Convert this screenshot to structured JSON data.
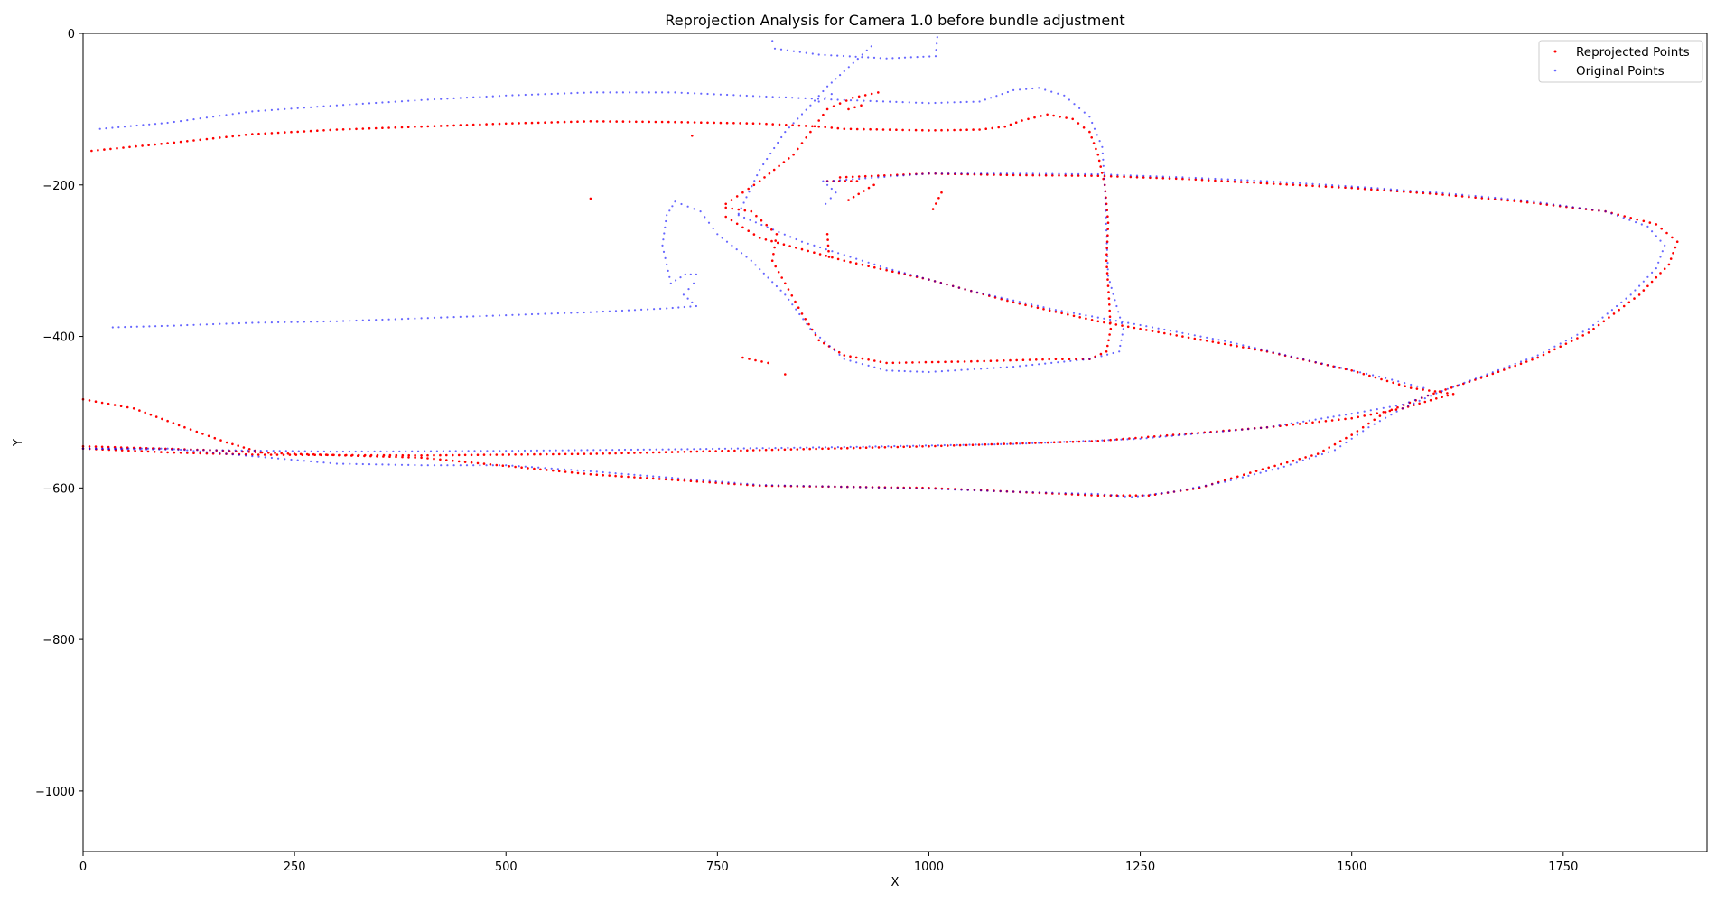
{
  "chart_data": {
    "type": "scatter",
    "title": "Reprojection Analysis for Camera 1.0 before bundle adjustment",
    "xlabel": "X",
    "ylabel": "Y",
    "xlim": [
      0,
      1920
    ],
    "ylim": [
      -1080,
      0
    ],
    "xticks": [
      0,
      250,
      500,
      750,
      1000,
      1250,
      1500,
      1750
    ],
    "yticks": [
      0,
      -200,
      -400,
      -600,
      -800,
      -1000
    ],
    "grid": false,
    "legend_position": "top-right",
    "series": [
      {
        "name": "Reprojected Points",
        "color": "#ff0000",
        "polylines": [
          [
            [
              10,
              -155
            ],
            [
              100,
              -145
            ],
            [
              200,
              -133
            ],
            [
              300,
              -127
            ],
            [
              400,
              -123
            ],
            [
              500,
              -119
            ],
            [
              600,
              -116
            ],
            [
              700,
              -117
            ],
            [
              800,
              -119
            ],
            [
              870,
              -123
            ],
            [
              900,
              -126
            ],
            [
              1000,
              -128
            ],
            [
              1060,
              -127
            ],
            [
              1090,
              -123
            ],
            [
              1110,
              -115
            ],
            [
              1140,
              -107
            ],
            [
              1170,
              -113
            ],
            [
              1190,
              -130
            ],
            [
              1200,
              -160
            ],
            [
              1208,
              -200
            ],
            [
              1212,
              -250
            ],
            [
              1210,
              -300
            ],
            [
              1213,
              -350
            ],
            [
              1215,
              -390
            ],
            [
              1210,
              -420
            ],
            [
              1190,
              -430
            ],
            [
              1150,
              -430
            ],
            [
              1050,
              -433
            ],
            [
              950,
              -435
            ],
            [
              900,
              -425
            ],
            [
              870,
              -405
            ],
            [
              850,
              -370
            ],
            [
              830,
              -330
            ],
            [
              815,
              -300
            ],
            [
              820,
              -265
            ],
            [
              790,
              -235
            ],
            [
              760,
              -230
            ]
          ],
          [
            [
              760,
              -225
            ],
            [
              800,
              -195
            ],
            [
              840,
              -160
            ],
            [
              860,
              -130
            ],
            [
              880,
              -100
            ],
            [
              910,
              -85
            ],
            [
              940,
              -78
            ]
          ],
          [
            [
              895,
              -190
            ],
            [
              1000,
              -185
            ],
            [
              1100,
              -187
            ],
            [
              1200,
              -188
            ],
            [
              1300,
              -192
            ],
            [
              1400,
              -198
            ],
            [
              1500,
              -204
            ],
            [
              1600,
              -212
            ],
            [
              1700,
              -222
            ],
            [
              1800,
              -235
            ],
            [
              1860,
              -252
            ],
            [
              1885,
              -275
            ],
            [
              1875,
              -305
            ],
            [
              1840,
              -345
            ],
            [
              1780,
              -395
            ],
            [
              1720,
              -428
            ],
            [
              1660,
              -452
            ],
            [
              1590,
              -478
            ],
            [
              1540,
              -500
            ],
            [
              1500,
              -530
            ],
            [
              1460,
              -555
            ],
            [
              1380,
              -580
            ],
            [
              1320,
              -600
            ],
            [
              1260,
              -610
            ],
            [
              1200,
              -610
            ],
            [
              1100,
              -605
            ],
            [
              1000,
              -600
            ],
            [
              800,
              -597
            ],
            [
              600,
              -582
            ],
            [
              400,
              -560
            ],
            [
              250,
              -555
            ],
            [
              150,
              -550
            ],
            [
              0,
              -545
            ]
          ],
          [
            [
              0,
              -483
            ],
            [
              60,
              -495
            ],
            [
              120,
              -520
            ],
            [
              170,
              -540
            ],
            [
              210,
              -553
            ]
          ],
          [
            [
              0,
              -548
            ],
            [
              100,
              -553
            ],
            [
              200,
              -556
            ],
            [
              400,
              -557
            ],
            [
              600,
              -555
            ],
            [
              800,
              -550
            ],
            [
              1000,
              -545
            ],
            [
              1200,
              -538
            ],
            [
              1400,
              -520
            ],
            [
              1500,
              -508
            ],
            [
              1560,
              -495
            ],
            [
              1600,
              -482
            ],
            [
              1620,
              -476
            ],
            [
              1570,
              -468
            ],
            [
              1500,
              -445
            ],
            [
              1400,
              -420
            ],
            [
              1300,
              -400
            ],
            [
              1200,
              -380
            ],
            [
              1100,
              -355
            ],
            [
              1000,
              -325
            ],
            [
              900,
              -300
            ],
            [
              800,
              -270
            ],
            [
              760,
              -242
            ]
          ],
          [
            [
              880,
              -195
            ],
            [
              915,
              -195
            ]
          ],
          [
            [
              905,
              -220
            ],
            [
              935,
              -200
            ]
          ],
          [
            [
              1005,
              -232
            ],
            [
              1015,
              -210
            ]
          ],
          [
            [
              880,
              -265
            ],
            [
              882,
              -295
            ]
          ],
          [
            [
              780,
              -428
            ],
            [
              810,
              -435
            ]
          ],
          [
            [
              905,
              -100
            ],
            [
              920,
              -95
            ]
          ]
        ],
        "points": [
          [
            830,
            -450
          ],
          [
            600,
            -218
          ],
          [
            720,
            -135
          ]
        ]
      },
      {
        "name": "Original Points",
        "color": "#0000ff",
        "polylines": [
          [
            [
              20,
              -126
            ],
            [
              100,
              -118
            ],
            [
              200,
              -103
            ],
            [
              300,
              -95
            ],
            [
              400,
              -88
            ],
            [
              500,
              -82
            ],
            [
              600,
              -78
            ],
            [
              700,
              -78
            ],
            [
              800,
              -83
            ],
            [
              900,
              -88
            ],
            [
              1000,
              -92
            ],
            [
              1060,
              -90
            ],
            [
              1100,
              -75
            ],
            [
              1130,
              -72
            ],
            [
              1160,
              -82
            ],
            [
              1190,
              -110
            ],
            [
              1205,
              -150
            ],
            [
              1208,
              -200
            ],
            [
              1210,
              -260
            ],
            [
              1212,
              -320
            ],
            [
              1222,
              -360
            ],
            [
              1230,
              -390
            ],
            [
              1225,
              -420
            ],
            [
              1190,
              -430
            ],
            [
              1100,
              -440
            ],
            [
              1000,
              -447
            ],
            [
              950,
              -445
            ],
            [
              900,
              -430
            ],
            [
              860,
              -390
            ],
            [
              830,
              -345
            ],
            [
              790,
              -300
            ],
            [
              750,
              -265
            ],
            [
              730,
              -235
            ],
            [
              700,
              -222
            ],
            [
              690,
              -240
            ],
            [
              685,
              -280
            ],
            [
              695,
              -330
            ],
            [
              712,
              -318
            ],
            [
              725,
              -318
            ],
            [
              722,
              -330
            ],
            [
              710,
              -345
            ],
            [
              725,
              -360
            ],
            [
              690,
              -363
            ],
            [
              600,
              -368
            ],
            [
              500,
              -372
            ],
            [
              400,
              -376
            ],
            [
              300,
              -380
            ],
            [
              200,
              -382
            ],
            [
              100,
              -386
            ],
            [
              35,
              -388
            ]
          ],
          [
            [
              775,
              -238
            ],
            [
              800,
              -180
            ],
            [
              830,
              -130
            ],
            [
              860,
              -95
            ],
            [
              880,
              -70
            ],
            [
              900,
              -50
            ],
            [
              932,
              -17
            ]
          ],
          [
            [
              815,
              -10
            ],
            [
              818,
              -20
            ],
            [
              870,
              -28
            ],
            [
              950,
              -33
            ],
            [
              1008,
              -30
            ],
            [
              1010,
              -5
            ]
          ],
          [
            [
              870,
              -90
            ],
            [
              885,
              -80
            ]
          ],
          [
            [
              875,
              -195
            ],
            [
              890,
              -210
            ],
            [
              878,
              -225
            ]
          ],
          [
            [
              880,
              -195
            ],
            [
              1000,
              -185
            ],
            [
              1100,
              -185
            ],
            [
              1200,
              -186
            ],
            [
              1300,
              -190
            ],
            [
              1400,
              -195
            ],
            [
              1500,
              -202
            ],
            [
              1600,
              -210
            ],
            [
              1700,
              -220
            ],
            [
              1800,
              -235
            ],
            [
              1850,
              -255
            ],
            [
              1870,
              -280
            ],
            [
              1860,
              -310
            ],
            [
              1830,
              -345
            ],
            [
              1780,
              -390
            ],
            [
              1720,
              -425
            ],
            [
              1660,
              -450
            ],
            [
              1600,
              -475
            ],
            [
              1560,
              -495
            ],
            [
              1520,
              -520
            ],
            [
              1480,
              -550
            ],
            [
              1420,
              -572
            ],
            [
              1350,
              -592
            ],
            [
              1290,
              -605
            ],
            [
              1240,
              -612
            ],
            [
              1200,
              -608
            ],
            [
              1100,
              -605
            ],
            [
              1000,
              -601
            ],
            [
              800,
              -596
            ],
            [
              600,
              -578
            ],
            [
              500,
              -570
            ],
            [
              400,
              -570
            ],
            [
              300,
              -568
            ],
            [
              200,
              -558
            ],
            [
              100,
              -548
            ],
            [
              0,
              -548
            ]
          ],
          [
            [
              0,
              -548
            ],
            [
              150,
              -550
            ],
            [
              300,
              -552
            ],
            [
              500,
              -551
            ],
            [
              700,
              -549
            ],
            [
              900,
              -546
            ],
            [
              1100,
              -542
            ],
            [
              1250,
              -535
            ],
            [
              1400,
              -520
            ],
            [
              1500,
              -502
            ],
            [
              1560,
              -490
            ],
            [
              1590,
              -478
            ],
            [
              1585,
              -468
            ],
            [
              1540,
              -455
            ],
            [
              1450,
              -432
            ],
            [
              1350,
              -406
            ],
            [
              1250,
              -385
            ],
            [
              1150,
              -365
            ],
            [
              1050,
              -340
            ],
            [
              950,
              -310
            ],
            [
              850,
              -275
            ],
            [
              775,
              -240
            ]
          ]
        ],
        "points": []
      }
    ]
  }
}
